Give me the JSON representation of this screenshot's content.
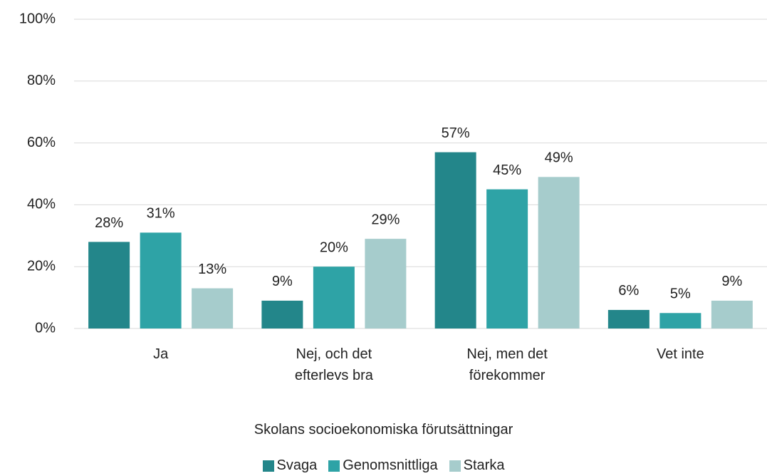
{
  "chart_data": {
    "type": "bar",
    "xlabel": "Skolans socioekonomiska förutsättningar",
    "categories": [
      "Ja",
      "Nej, och det efterlevs bra",
      "Nej, men det förekommer",
      "Vet inte"
    ],
    "series": [
      {
        "name": "Svaga",
        "color": "#23868a",
        "values": [
          28,
          9,
          57,
          6
        ],
        "value_labels": [
          "28%",
          "9%",
          "57%",
          "6%"
        ]
      },
      {
        "name": "Genomsnittliga",
        "color": "#2ea3a6",
        "values": [
          31,
          20,
          45,
          5
        ],
        "value_labels": [
          "31%",
          "20%",
          "45%",
          "5%"
        ]
      },
      {
        "name": "Starka",
        "color": "#a6cccc",
        "values": [
          13,
          29,
          49,
          9
        ],
        "value_labels": [
          "13%",
          "29%",
          "49%",
          "9%"
        ]
      }
    ],
    "ylim": [
      0,
      100
    ],
    "yticks": [
      {
        "value": 0,
        "label": "0%"
      },
      {
        "value": 20,
        "label": "20%"
      },
      {
        "value": 40,
        "label": "40%"
      },
      {
        "value": 60,
        "label": "60%"
      },
      {
        "value": 80,
        "label": "80%"
      },
      {
        "value": 100,
        "label": "100%"
      }
    ],
    "grid": true,
    "legend": "bottom"
  }
}
